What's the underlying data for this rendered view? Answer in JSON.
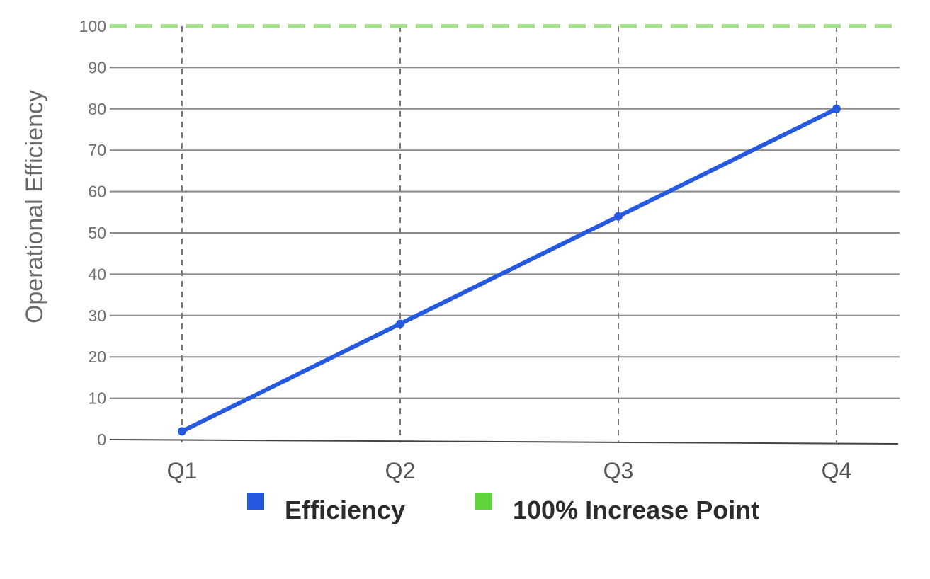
{
  "chart_data": {
    "type": "line",
    "categories": [
      "Q1",
      "Q2",
      "Q3",
      "Q4"
    ],
    "series": [
      {
        "name": "Efficiency",
        "values": [
          2,
          28,
          54,
          80
        ],
        "color": "#2459e0"
      }
    ],
    "reference_lines": [
      {
        "name": "100% Increase Point",
        "y": 100,
        "color": "#a6e08f",
        "style": "dashed"
      }
    ],
    "y_ticks": [
      0,
      10,
      20,
      30,
      40,
      50,
      60,
      70,
      80,
      90,
      100
    ],
    "ylim": [
      0,
      100
    ],
    "ylabel": "Operational Efficiency",
    "xlabel": "",
    "title": "",
    "grid": {
      "horizontal": true,
      "vertical": "dashed"
    },
    "legend": {
      "position": "bottom",
      "items": [
        {
          "label": "Efficiency",
          "color": "#2459e0"
        },
        {
          "label": "100% Increase Point",
          "color": "#5fd43b"
        }
      ]
    }
  }
}
